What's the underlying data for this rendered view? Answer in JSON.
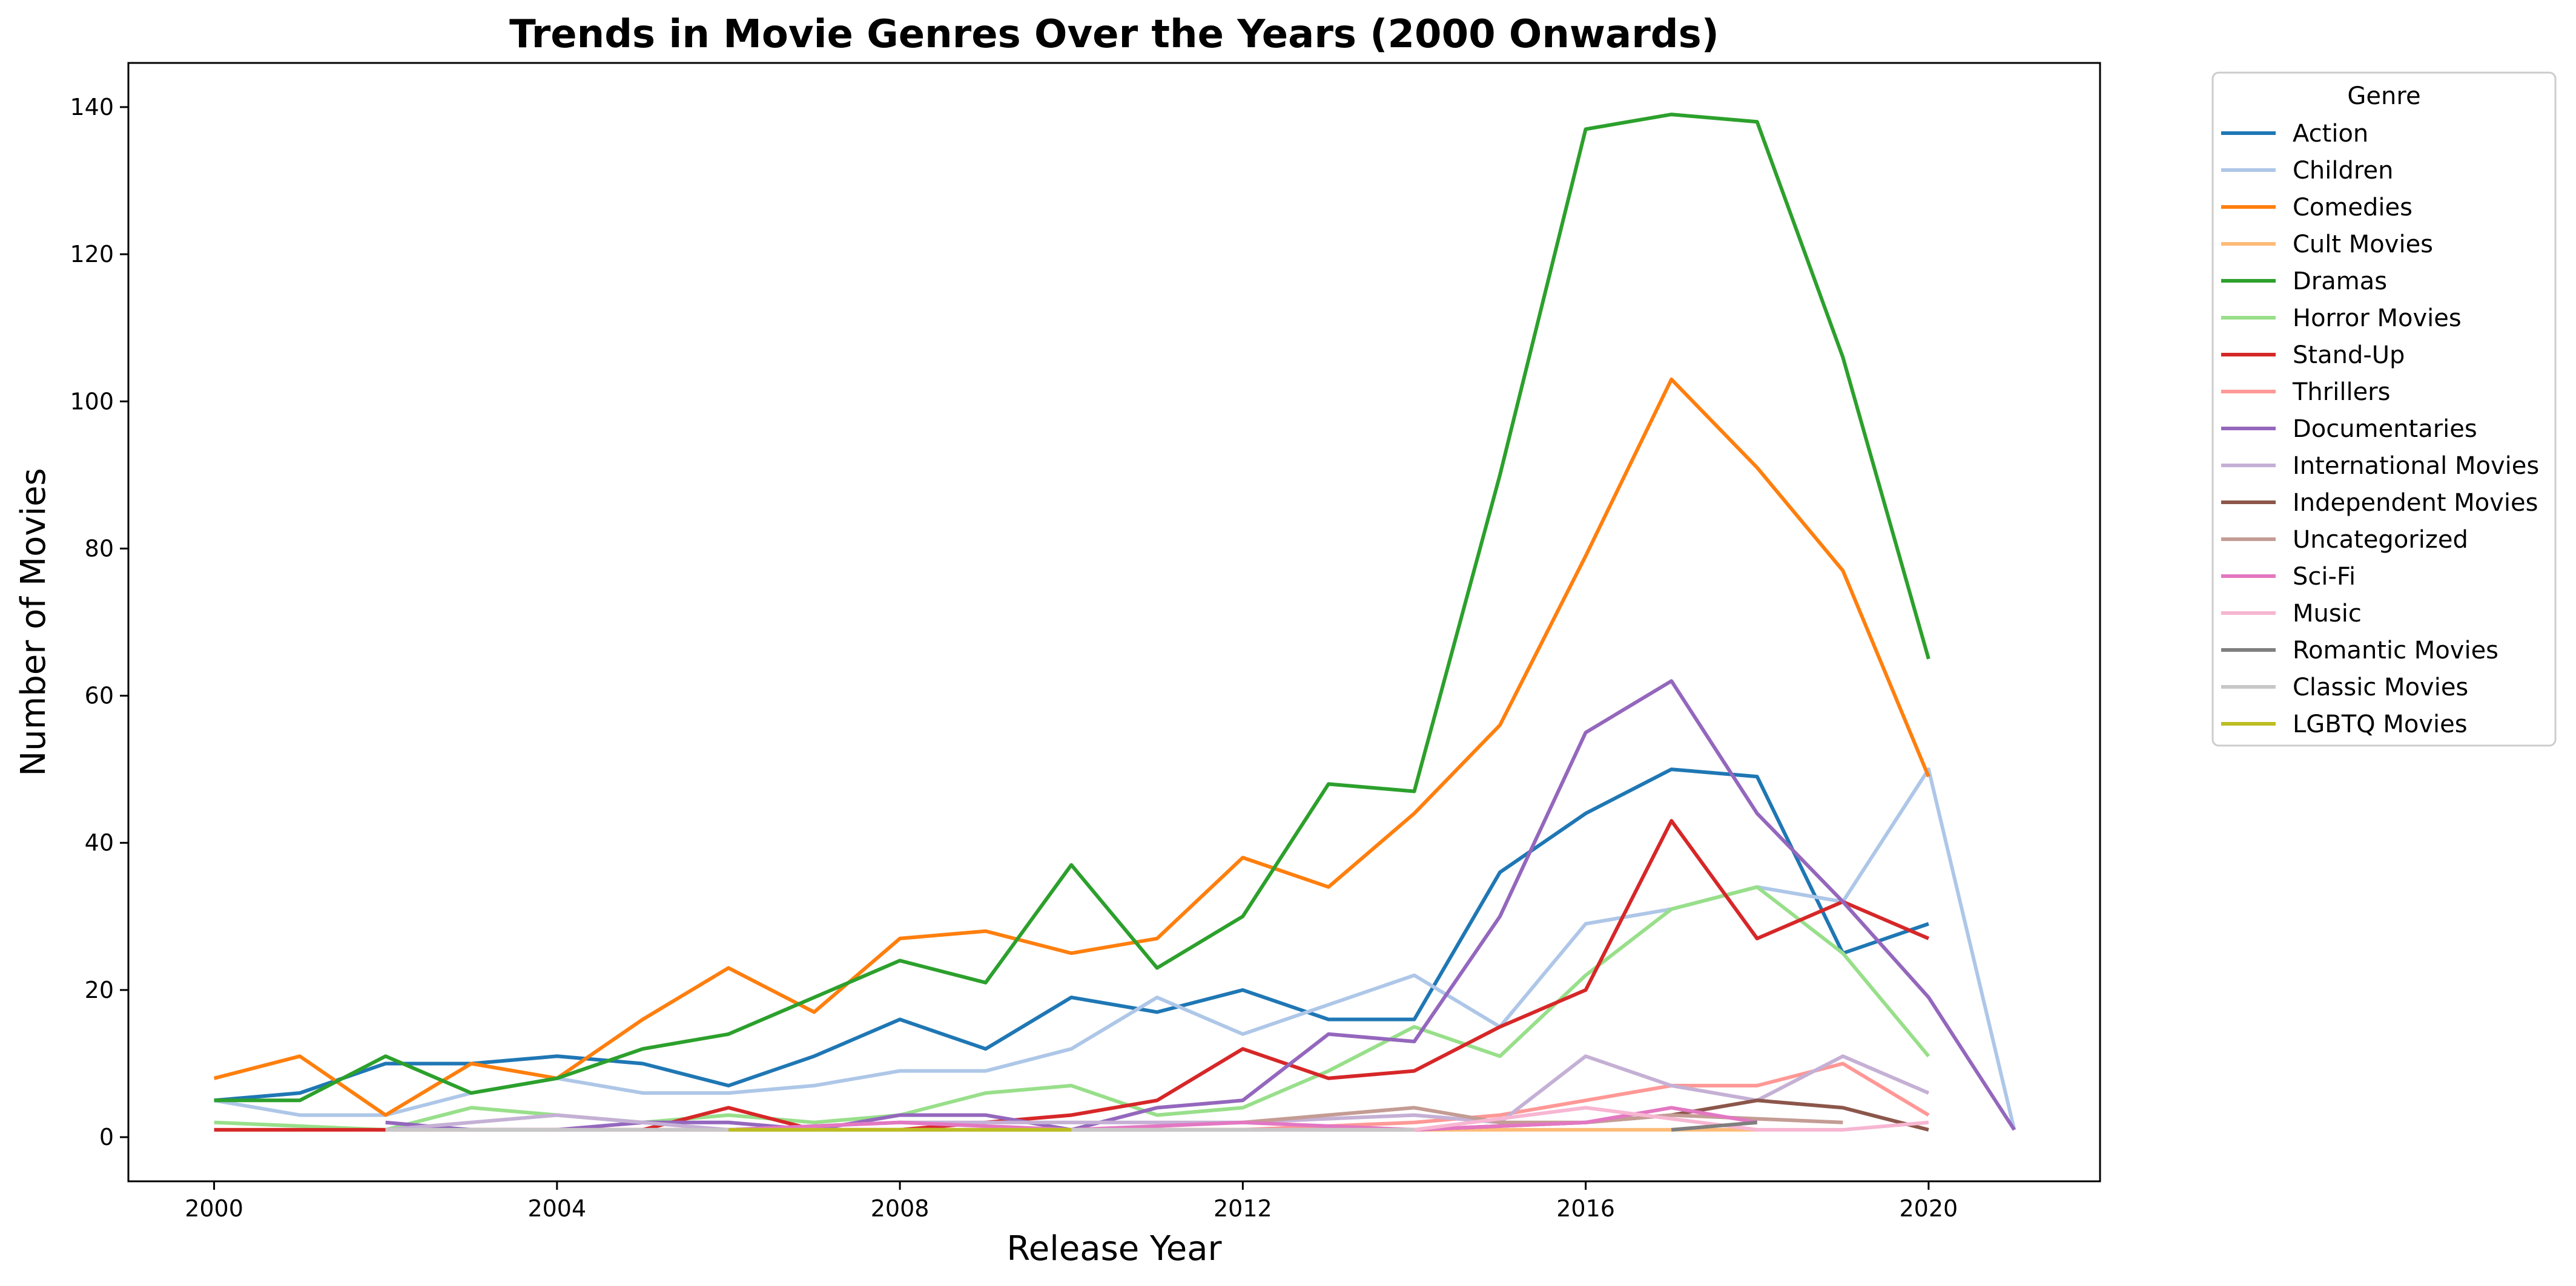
{
  "chart_data": {
    "type": "line",
    "title": "Trends in Movie Genres Over the Years (2000 Onwards)",
    "xlabel": "Release Year",
    "ylabel": "Number of Movies",
    "xlim": [
      1999,
      2022
    ],
    "ylim": [
      -6,
      146
    ],
    "xticks": [
      2000,
      2004,
      2008,
      2012,
      2016,
      2020
    ],
    "yticks": [
      0,
      20,
      40,
      60,
      80,
      100,
      120,
      140
    ],
    "grid": false,
    "legend": {
      "title": "Genre",
      "placement": "outside-top-right"
    },
    "series": [
      {
        "name": "Action",
        "color": "#1f77b4",
        "x": [
          2000,
          2001,
          2002,
          2003,
          2004,
          2005,
          2006,
          2007,
          2008,
          2009,
          2010,
          2011,
          2012,
          2013,
          2014,
          2015,
          2016,
          2017,
          2018,
          2019,
          2020
        ],
        "y": [
          5,
          6,
          10,
          10,
          11,
          10,
          7,
          11,
          16,
          12,
          19,
          17,
          20,
          16,
          16,
          36,
          44,
          50,
          49,
          25,
          29
        ]
      },
      {
        "name": "Children",
        "color": "#aec7e8",
        "x": [
          2000,
          2001,
          2002,
          2003,
          2004,
          2005,
          2006,
          2007,
          2008,
          2009,
          2010,
          2011,
          2012,
          2013,
          2014,
          2015,
          2016,
          2017,
          2018,
          2019,
          2020,
          2021
        ],
        "y": [
          5,
          3,
          3,
          6,
          8,
          6,
          6,
          7,
          9,
          9,
          12,
          19,
          14,
          18,
          22,
          15,
          29,
          31,
          34,
          32,
          50,
          1
        ]
      },
      {
        "name": "Comedies",
        "color": "#ff7f0e",
        "x": [
          2000,
          2001,
          2002,
          2003,
          2004,
          2005,
          2006,
          2007,
          2008,
          2009,
          2010,
          2011,
          2012,
          2013,
          2014,
          2015,
          2016,
          2017,
          2018,
          2019,
          2020
        ],
        "y": [
          8,
          11,
          3,
          10,
          8,
          16,
          23,
          17,
          27,
          28,
          25,
          27,
          38,
          34,
          44,
          56,
          79,
          103,
          91,
          77,
          49
        ]
      },
      {
        "name": "Cult Movies",
        "color": "#ffbb78",
        "x": [
          2000,
          2001,
          2002,
          2004,
          2006,
          2008,
          2010,
          2012,
          2014,
          2016,
          2017,
          2018
        ],
        "y": [
          1,
          1,
          1,
          1,
          1,
          1,
          1,
          1,
          1,
          1,
          1,
          1
        ]
      },
      {
        "name": "Dramas",
        "color": "#2ca02c",
        "x": [
          2000,
          2001,
          2002,
          2003,
          2004,
          2005,
          2006,
          2007,
          2008,
          2009,
          2010,
          2011,
          2012,
          2013,
          2014,
          2015,
          2016,
          2017,
          2018,
          2019,
          2020
        ],
        "y": [
          5,
          5,
          11,
          6,
          8,
          12,
          14,
          19,
          24,
          21,
          37,
          23,
          30,
          48,
          47,
          90,
          137,
          139,
          138,
          106,
          65
        ]
      },
      {
        "name": "Horror Movies",
        "color": "#98df8a",
        "x": [
          2000,
          2001,
          2002,
          2003,
          2004,
          2005,
          2006,
          2007,
          2008,
          2009,
          2010,
          2011,
          2012,
          2013,
          2014,
          2015,
          2016,
          2017,
          2018,
          2019,
          2020
        ],
        "y": [
          2,
          1.5,
          1,
          4,
          3,
          2,
          3,
          2,
          3,
          6,
          7,
          3,
          4,
          9,
          15,
          11,
          22,
          31,
          34,
          25,
          11
        ]
      },
      {
        "name": "Stand-Up",
        "color": "#d62728",
        "x": [
          2000,
          2001,
          2002,
          2003,
          2004,
          2005,
          2006,
          2007,
          2008,
          2009,
          2010,
          2011,
          2012,
          2013,
          2014,
          2015,
          2016,
          2017,
          2018,
          2019,
          2020
        ],
        "y": [
          1,
          1,
          1,
          1,
          1,
          1,
          4,
          1,
          1,
          2,
          3,
          5,
          12,
          8,
          9,
          15,
          20,
          43,
          27,
          32,
          27
        ]
      },
      {
        "name": "Thrillers",
        "color": "#ff9896",
        "x": [
          2002,
          2004,
          2006,
          2008,
          2010,
          2012,
          2014,
          2015,
          2016,
          2017,
          2018,
          2019,
          2020
        ],
        "y": [
          1,
          1,
          1,
          1,
          1,
          1,
          2,
          3,
          5,
          7,
          7,
          10,
          3
        ]
      },
      {
        "name": "Documentaries",
        "color": "#9467bd",
        "x": [
          2002,
          2003,
          2004,
          2005,
          2006,
          2007,
          2008,
          2009,
          2010,
          2011,
          2012,
          2013,
          2014,
          2015,
          2016,
          2017,
          2018,
          2019,
          2020,
          2021
        ],
        "y": [
          2,
          1,
          1,
          2,
          2,
          1,
          3,
          3,
          1,
          4,
          5,
          14,
          13,
          30,
          55,
          62,
          44,
          32,
          19,
          1
        ]
      },
      {
        "name": "International Movies",
        "color": "#c5b0d5",
        "x": [
          2002,
          2004,
          2006,
          2008,
          2010,
          2012,
          2014,
          2015,
          2016,
          2017,
          2018,
          2019,
          2020
        ],
        "y": [
          1,
          3,
          1,
          2,
          2,
          2,
          3,
          2,
          11,
          7,
          5,
          11,
          6
        ]
      },
      {
        "name": "Independent Movies",
        "color": "#8c564b",
        "x": [
          2010,
          2012,
          2014,
          2016,
          2017,
          2018,
          2019,
          2020
        ],
        "y": [
          1,
          1,
          1,
          2,
          3,
          5,
          4,
          1
        ]
      },
      {
        "name": "Uncategorized",
        "color": "#c49c94",
        "x": [
          2012,
          2014,
          2015,
          2016,
          2017,
          2018,
          2019
        ],
        "y": [
          2,
          4,
          2,
          2,
          3,
          2.5,
          2
        ]
      },
      {
        "name": "Sci-Fi",
        "color": "#e377c2",
        "x": [
          2004,
          2006,
          2008,
          2010,
          2012,
          2014,
          2016,
          2017,
          2018
        ],
        "y": [
          1,
          1,
          2,
          1,
          2,
          1,
          2,
          4,
          2
        ]
      },
      {
        "name": "Music",
        "color": "#f7b6d2",
        "x": [
          2006,
          2008,
          2010,
          2012,
          2014,
          2016,
          2018,
          2019,
          2020
        ],
        "y": [
          1,
          1,
          1,
          1,
          1,
          4,
          1,
          1,
          2
        ]
      },
      {
        "name": "Romantic Movies",
        "color": "#7f7f7f",
        "x": [
          2017,
          2018
        ],
        "y": [
          1,
          2
        ]
      },
      {
        "name": "Classic Movies",
        "color": "#c7c7c7",
        "x": [
          2002,
          2004,
          2006,
          2008,
          2010,
          2012,
          2014
        ],
        "y": [
          1,
          1,
          1,
          1,
          1,
          1,
          1
        ]
      },
      {
        "name": "LGBTQ Movies",
        "color": "#bcbd22",
        "x": [
          2006,
          2008,
          2010
        ],
        "y": [
          1,
          1,
          1
        ]
      }
    ]
  }
}
